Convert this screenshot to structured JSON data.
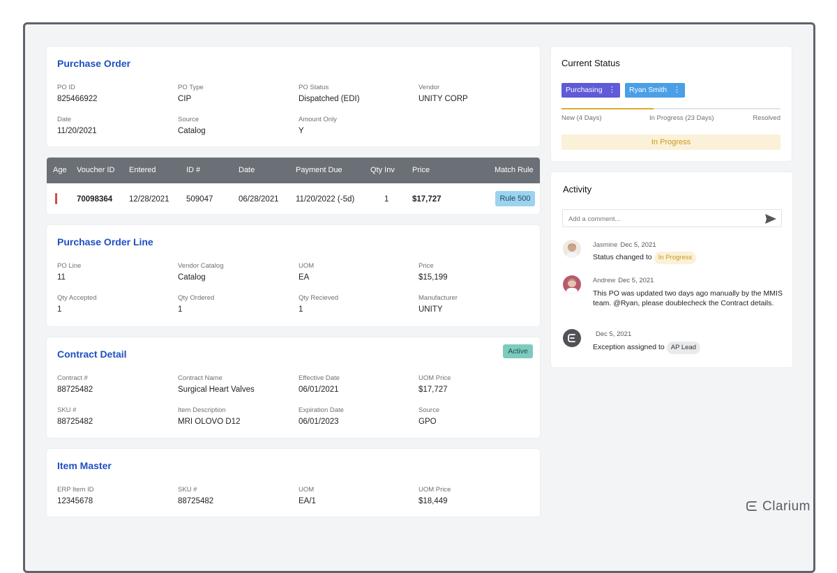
{
  "purchase_order": {
    "title": "Purchase Order",
    "fields": [
      {
        "label": "PO ID",
        "value": "825466922"
      },
      {
        "label": "PO Type",
        "value": "CIP"
      },
      {
        "label": "PO Status",
        "value": "Dispatched (EDI)"
      },
      {
        "label": "Vendor",
        "value": "UNITY CORP"
      },
      {
        "label": "Date",
        "value": "11/20/2021"
      },
      {
        "label": "Source",
        "value": "Catalog"
      },
      {
        "label": "Amount Only",
        "value": "Y"
      }
    ]
  },
  "voucher_table": {
    "columns": [
      "Age",
      "Voucher ID",
      "Entered",
      "ID #",
      "Date",
      "Payment Due",
      "Qty Inv",
      "Price",
      "Match Rule"
    ],
    "row": {
      "voucher_id": "70098364",
      "entered": "12/28/2021",
      "id": "509047",
      "date": "06/28/2021",
      "payment_due": "11/20/2022",
      "payment_due_delta": "(-5d)",
      "qty_inv": "1",
      "price": "$17,727",
      "match_rule": "Rule 500"
    }
  },
  "po_line": {
    "title": "Purchase Order Line",
    "fields": [
      {
        "label": "PO Line",
        "value": "11"
      },
      {
        "label": "Vendor Catalog",
        "value": "Catalog"
      },
      {
        "label": "UOM",
        "value": "EA"
      },
      {
        "label": "Price",
        "value": "$15,199"
      },
      {
        "label": "Qty Accepted",
        "value": "1"
      },
      {
        "label": "Qty Ordered",
        "value": "1"
      },
      {
        "label": "Qty Recieved",
        "value": "1"
      },
      {
        "label": "Manufacturer",
        "value": "UNITY"
      }
    ]
  },
  "contract_detail": {
    "title": "Contract Detail",
    "badge": "Active",
    "fields": [
      {
        "label": "Contract #",
        "value": "88725482"
      },
      {
        "label": "Contract Name",
        "value": "Surgical Heart Valves"
      },
      {
        "label": "Effective Date",
        "value": "06/01/2021"
      },
      {
        "label": "UOM Price",
        "value": "$17,727"
      },
      {
        "label": "SKU #",
        "value": "88725482"
      },
      {
        "label": "Item Description",
        "value": "MRI OLOVO D12"
      },
      {
        "label": "Expiration Date",
        "value": "06/01/2023"
      },
      {
        "label": "Source",
        "value": "GPO"
      }
    ]
  },
  "item_master": {
    "title": "Item Master",
    "fields": [
      {
        "label": "ERP Item ID",
        "value": "12345678"
      },
      {
        "label": "SKU #",
        "value": "88725482"
      },
      {
        "label": "UOM",
        "value": "EA/1"
      },
      {
        "label": "UOM Price",
        "value": "$18,449"
      }
    ]
  },
  "current_status": {
    "title": "Current Status",
    "chips": [
      {
        "label": "Purchasing",
        "color": "#5f5ad6"
      },
      {
        "label": "Ryan Smith",
        "color": "#4a9fe6"
      }
    ],
    "steps": [
      "New (4 Days)",
      "In Progress (23 Days)",
      "Resolved"
    ],
    "progress_fraction": 0.42,
    "status": "In Progress"
  },
  "activity": {
    "title": "Activity",
    "comment_placeholder": "Add a comment...",
    "items": [
      {
        "author": "Jasmine",
        "date": "Dec 5, 2021",
        "text": "Status changed to",
        "pill": "In Progress"
      },
      {
        "author": "Andrew",
        "date": "Dec 5, 2021",
        "text": "This PO was updated two days ago manually by the MMIS team. @Ryan, please doublecheck the Contract details."
      },
      {
        "author": "",
        "date": "Dec 5, 2021",
        "text": "Exception assigned to",
        "pill": "AP Lead"
      }
    ]
  },
  "brand": {
    "name": "Clarium"
  }
}
